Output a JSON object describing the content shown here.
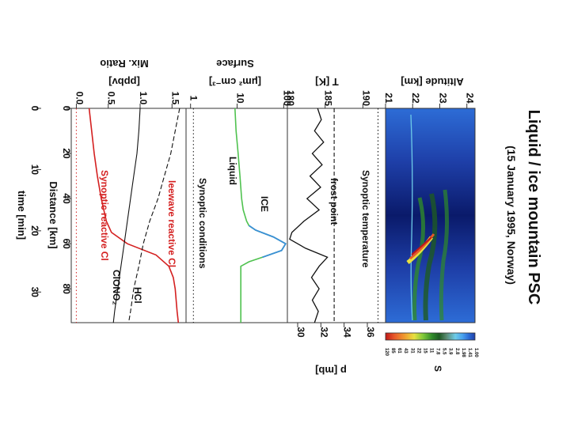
{
  "title": "Liquid / ice mountain PSC",
  "subtitle": "(15 January 1995, Norway)",
  "altitude_panel": {
    "label": "Altitude [km]",
    "ticks": [
      "21",
      "22",
      "23",
      "24"
    ],
    "colorbar_label": "S",
    "colorbar_ticks": [
      "1.00",
      "1.41",
      "1.98",
      "2.8",
      "3.9",
      "5.5",
      "7.8",
      "11",
      "15",
      "22",
      "31",
      "43",
      "61",
      "85",
      "120"
    ],
    "colors": [
      "#0a1a6a",
      "#1e3fa8",
      "#2d6cd6",
      "#4aa2ee",
      "#6dcbe8",
      "#5a8a70",
      "#2d6a35",
      "#1e5a23",
      "#2f8a2a",
      "#7ec83a",
      "#e8e040",
      "#f0a030",
      "#e85a2a",
      "#d42020",
      "#c01818"
    ]
  },
  "temperature_panel": {
    "label": "T [K]",
    "ticks": [
      "180",
      "185",
      "190"
    ],
    "p_label": "p [mb]",
    "p_ticks": [
      "30",
      "32",
      "34",
      "36"
    ],
    "annotations": {
      "synoptic": "Synoptic temperature",
      "frost": "frost point"
    }
  },
  "surface_panel": {
    "label_a": "Surface",
    "label_b": "[μm² cm⁻³]",
    "ticks": [
      "1",
      "10",
      "100"
    ],
    "annotations": {
      "liquid": "Liquid",
      "ice": "ICE",
      "synoptic": "Synoptic conditions"
    }
  },
  "mixratio_panel": {
    "label_a": "Mix. Ratio",
    "label_b": "[ppbv]",
    "ticks": [
      "0.0",
      "0.5",
      "1.0",
      "1.5"
    ],
    "annotations": {
      "leewave": "leewave reactive Cl",
      "synoptic": "Synoptic reactive Cl",
      "hcl": "HCl",
      "clono2": "ClONO₂"
    }
  },
  "distance_axis": {
    "label": "Distance [km]",
    "ticks": [
      "0",
      "20",
      "40",
      "60",
      "80"
    ]
  },
  "time_axis": {
    "label": "time [min]",
    "ticks": [
      "0",
      "10",
      "20",
      "30"
    ]
  },
  "chart_data": {
    "type": "line",
    "x_label": "Distance [km]",
    "x_range": [
      0,
      95
    ],
    "series": [
      {
        "panel": "temperature",
        "name": "T",
        "unit": "K",
        "x": [
          0,
          5,
          10,
          15,
          20,
          25,
          30,
          35,
          40,
          45,
          50,
          55,
          58,
          62,
          66,
          70,
          75,
          80,
          85,
          90,
          95
        ],
        "y": [
          184,
          184.5,
          183.6,
          184.8,
          183.3,
          184.6,
          183.0,
          184.4,
          182.6,
          184.2,
          182.2,
          180.6,
          180.3,
          182.4,
          185.3,
          184.2,
          183.2,
          184.2,
          183.3,
          184.1,
          183.6
        ]
      },
      {
        "panel": "temperature",
        "name": "frost point",
        "unit": "K",
        "x": [
          0,
          95
        ],
        "y": [
          186.2,
          186.2
        ]
      },
      {
        "panel": "temperature",
        "name": "Synoptic temperature",
        "unit": "K",
        "x": [
          0,
          95
        ],
        "y": [
          192.0,
          192.0
        ]
      },
      {
        "panel": "surface",
        "name": "Liquid",
        "unit": "μm² cm⁻³",
        "x": [
          0,
          10,
          20,
          30,
          40,
          45,
          50,
          52,
          54,
          57,
          60,
          63,
          66,
          68,
          70,
          80,
          95
        ],
        "y": [
          9,
          9.5,
          10.5,
          11.5,
          12.5,
          13.5,
          16,
          18,
          25,
          60,
          110,
          90,
          35,
          18,
          12,
          12,
          12
        ]
      },
      {
        "panel": "surface",
        "name": "Synoptic conditions",
        "unit": "μm² cm⁻³",
        "x": [
          0,
          95
        ],
        "y": [
          1.15,
          1.15
        ]
      },
      {
        "panel": "mixratio",
        "name": "leewave reactive Cl",
        "unit": "ppbv",
        "x": [
          0,
          10,
          20,
          30,
          40,
          50,
          55,
          60,
          65,
          70,
          75,
          80,
          90,
          95
        ],
        "y": [
          0.2,
          0.24,
          0.28,
          0.33,
          0.39,
          0.47,
          0.55,
          0.8,
          1.25,
          1.45,
          1.52,
          1.55,
          1.58,
          1.6
        ]
      },
      {
        "panel": "mixratio",
        "name": "HCl",
        "unit": "ppbv",
        "x": [
          0,
          10,
          20,
          30,
          40,
          50,
          60,
          70,
          80,
          90,
          95
        ],
        "y": [
          1.62,
          1.55,
          1.48,
          1.38,
          1.28,
          1.15,
          1.05,
          0.98,
          0.9,
          0.85,
          0.82
        ]
      },
      {
        "panel": "mixratio",
        "name": "ClONO2",
        "unit": "ppbv",
        "x": [
          0,
          10,
          20,
          30,
          40,
          50,
          60,
          70,
          80,
          90,
          95
        ],
        "y": [
          1.0,
          0.98,
          0.95,
          0.9,
          0.85,
          0.8,
          0.75,
          0.7,
          0.65,
          0.6,
          0.58
        ]
      },
      {
        "panel": "mixratio",
        "name": "Synoptic reactive Cl",
        "unit": "ppbv",
        "x": [
          0,
          95
        ],
        "y": [
          0.0,
          0.0
        ]
      }
    ]
  }
}
